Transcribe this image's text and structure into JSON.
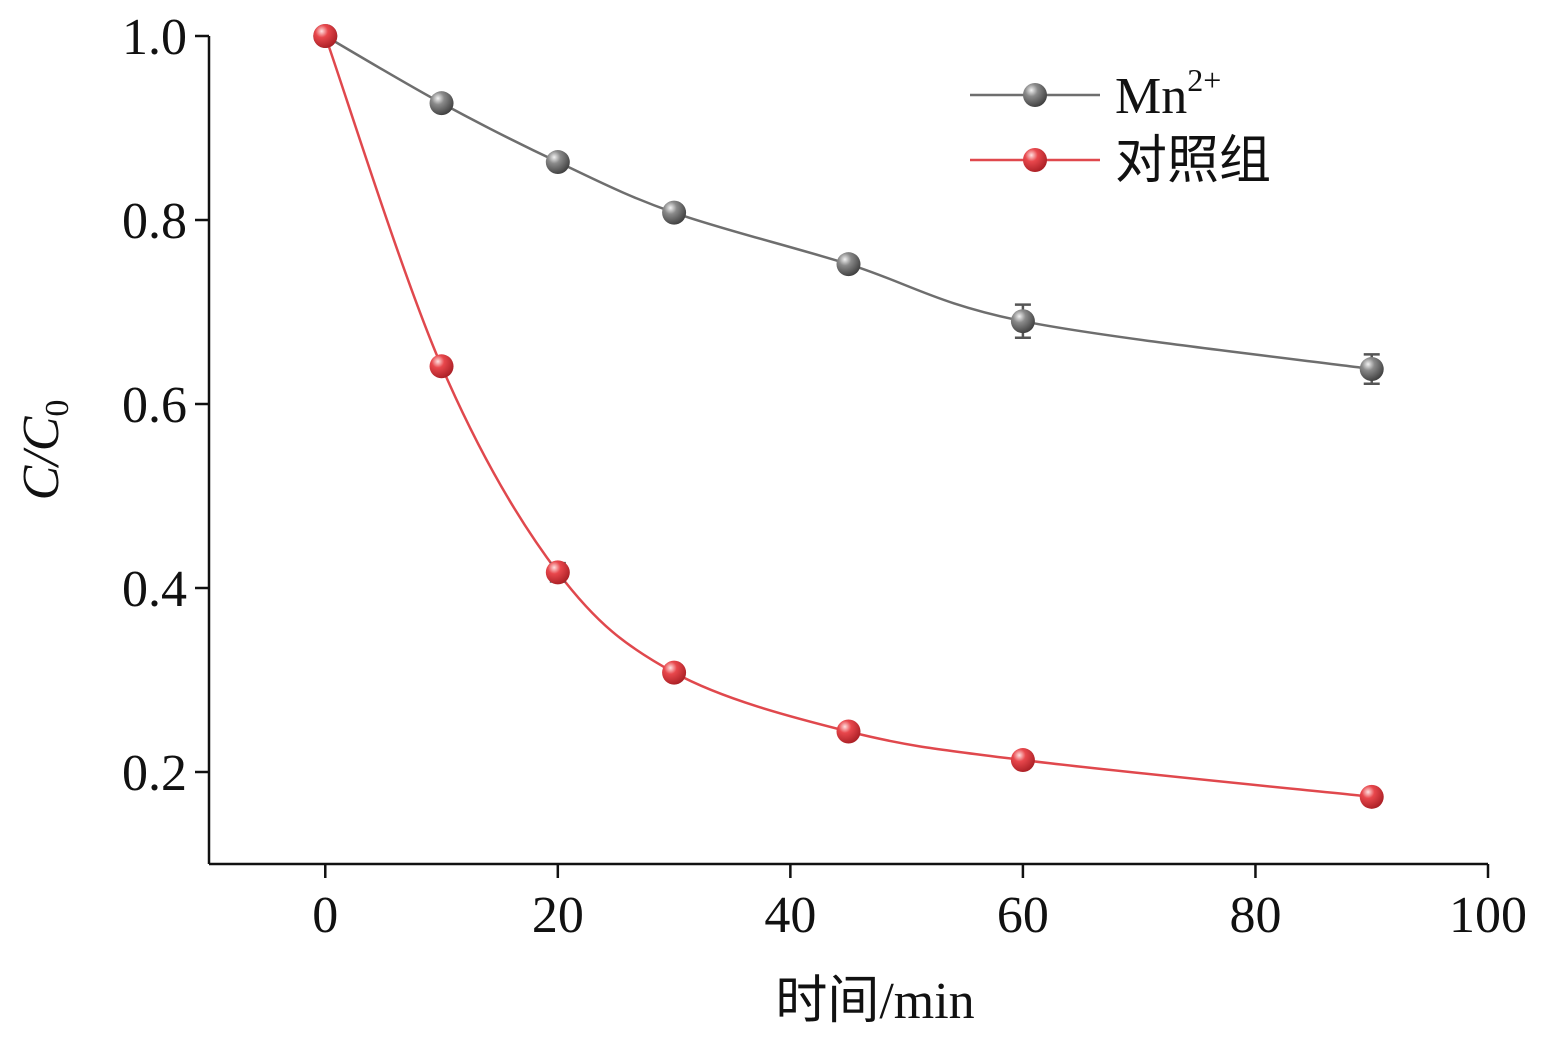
{
  "chart_data": {
    "type": "line",
    "title": "",
    "xlabel": "时间/min",
    "ylabel_main": "C/C",
    "ylabel_sub": "0",
    "xlim": [
      -10,
      100
    ],
    "ylim": [
      0.1,
      1.0
    ],
    "xticks": [
      0,
      20,
      40,
      60,
      80,
      100
    ],
    "xtick_labels": [
      "0",
      "20",
      "40",
      "60",
      "80",
      "100"
    ],
    "yticks": [
      0.2,
      0.4,
      0.6,
      0.8,
      1.0
    ],
    "ytick_labels": [
      "0.2",
      "0.4",
      "0.6",
      "0.8",
      "1.0"
    ],
    "grid": false,
    "legend_position": "top-right",
    "series": [
      {
        "name": "Mn",
        "name_sup": "2+",
        "color": "#6e6e6e",
        "marker_color": "#808080",
        "x": [
          0,
          10,
          20,
          30,
          45,
          60,
          90
        ],
        "y": [
          1.0,
          0.927,
          0.863,
          0.808,
          0.752,
          0.69,
          0.638
        ],
        "err": [
          0,
          0.005,
          0.005,
          0.008,
          0.006,
          0.018,
          0.016
        ]
      },
      {
        "name": "对照组",
        "name_sup": "",
        "color": "#e0484d",
        "marker_color": "#e0484d",
        "x": [
          0,
          10,
          20,
          30,
          45,
          60,
          90
        ],
        "y": [
          1.0,
          0.641,
          0.417,
          0.308,
          0.244,
          0.213,
          0.173
        ],
        "err": [
          0,
          0.004,
          0.01,
          0.006,
          0.005,
          0.005,
          0.004
        ]
      }
    ]
  }
}
